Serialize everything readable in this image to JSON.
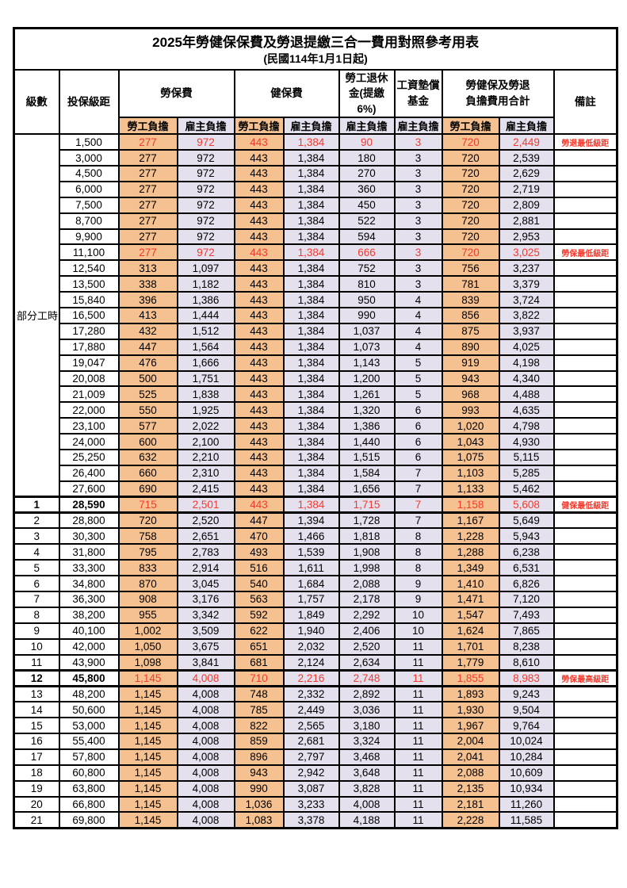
{
  "title": {
    "line1": "2025年勞健保保費及勞退提繳三合一費用對照參考用表",
    "line2": "(民國114年1月1日起)"
  },
  "header": {
    "level": "級數",
    "bracket": "投保級距",
    "labor_fee": "勞保費",
    "health_fee": "健保費",
    "pension": "勞工退休\n金(提繳6%)",
    "wage_fund": "工資墊償\n基金",
    "total": "勞健保及勞退\n負擔費用合計",
    "remark": "備註",
    "employee_burden": "勞工負擔",
    "employer_burden": "雇主負擔"
  },
  "group": {
    "label": "部分工時",
    "span": 23
  },
  "colors": {
    "employee_bg": "#f6c190",
    "employer_bg": "#e4e0ee",
    "highlight_text": "#f43a2d"
  },
  "chart_data": {
    "type": "table",
    "columns": [
      "級數",
      "投保級距",
      "勞保費-勞工負擔",
      "勞保費-雇主負擔",
      "健保費-勞工負擔",
      "健保費-雇主負擔",
      "勞工退休金(提繳6%)-雇主負擔",
      "工資墊償基金-雇主負擔",
      "合計-勞工負擔",
      "合計-雇主負擔",
      "備註"
    ]
  },
  "rows": [
    {
      "level": "",
      "bracket": "1,500",
      "values": [
        "277",
        "972",
        "443",
        "1,384",
        "90",
        "3",
        "720",
        "2,449"
      ],
      "remark": "勞退最低級距",
      "highlight": true,
      "emphasis": false
    },
    {
      "level": "",
      "bracket": "3,000",
      "values": [
        "277",
        "972",
        "443",
        "1,384",
        "180",
        "3",
        "720",
        "2,539"
      ],
      "remark": "",
      "highlight": false,
      "emphasis": false
    },
    {
      "level": "",
      "bracket": "4,500",
      "values": [
        "277",
        "972",
        "443",
        "1,384",
        "270",
        "3",
        "720",
        "2,629"
      ],
      "remark": "",
      "highlight": false,
      "emphasis": false
    },
    {
      "level": "",
      "bracket": "6,000",
      "values": [
        "277",
        "972",
        "443",
        "1,384",
        "360",
        "3",
        "720",
        "2,719"
      ],
      "remark": "",
      "highlight": false,
      "emphasis": false
    },
    {
      "level": "",
      "bracket": "7,500",
      "values": [
        "277",
        "972",
        "443",
        "1,384",
        "450",
        "3",
        "720",
        "2,809"
      ],
      "remark": "",
      "highlight": false,
      "emphasis": false
    },
    {
      "level": "",
      "bracket": "8,700",
      "values": [
        "277",
        "972",
        "443",
        "1,384",
        "522",
        "3",
        "720",
        "2,881"
      ],
      "remark": "",
      "highlight": false,
      "emphasis": false
    },
    {
      "level": "",
      "bracket": "9,900",
      "values": [
        "277",
        "972",
        "443",
        "1,384",
        "594",
        "3",
        "720",
        "2,953"
      ],
      "remark": "",
      "highlight": false,
      "emphasis": false
    },
    {
      "level": "",
      "bracket": "11,100",
      "values": [
        "277",
        "972",
        "443",
        "1,384",
        "666",
        "3",
        "720",
        "3,025"
      ],
      "remark": "勞保最低級距",
      "highlight": true,
      "emphasis": false
    },
    {
      "level": "",
      "bracket": "12,540",
      "values": [
        "313",
        "1,097",
        "443",
        "1,384",
        "752",
        "3",
        "756",
        "3,237"
      ],
      "remark": "",
      "highlight": false,
      "emphasis": false
    },
    {
      "level": "",
      "bracket": "13,500",
      "values": [
        "338",
        "1,182",
        "443",
        "1,384",
        "810",
        "3",
        "781",
        "3,379"
      ],
      "remark": "",
      "highlight": false,
      "emphasis": false
    },
    {
      "level": "",
      "bracket": "15,840",
      "values": [
        "396",
        "1,386",
        "443",
        "1,384",
        "950",
        "4",
        "839",
        "3,724"
      ],
      "remark": "",
      "highlight": false,
      "emphasis": false
    },
    {
      "level": "",
      "bracket": "16,500",
      "values": [
        "413",
        "1,444",
        "443",
        "1,384",
        "990",
        "4",
        "856",
        "3,822"
      ],
      "remark": "",
      "highlight": false,
      "emphasis": false
    },
    {
      "level": "",
      "bracket": "17,280",
      "values": [
        "432",
        "1,512",
        "443",
        "1,384",
        "1,037",
        "4",
        "875",
        "3,937"
      ],
      "remark": "",
      "highlight": false,
      "emphasis": false
    },
    {
      "level": "",
      "bracket": "17,880",
      "values": [
        "447",
        "1,564",
        "443",
        "1,384",
        "1,073",
        "4",
        "890",
        "4,025"
      ],
      "remark": "",
      "highlight": false,
      "emphasis": false
    },
    {
      "level": "",
      "bracket": "19,047",
      "values": [
        "476",
        "1,666",
        "443",
        "1,384",
        "1,143",
        "5",
        "919",
        "4,198"
      ],
      "remark": "",
      "highlight": false,
      "emphasis": false
    },
    {
      "level": "",
      "bracket": "20,008",
      "values": [
        "500",
        "1,751",
        "443",
        "1,384",
        "1,200",
        "5",
        "943",
        "4,340"
      ],
      "remark": "",
      "highlight": false,
      "emphasis": false
    },
    {
      "level": "",
      "bracket": "21,009",
      "values": [
        "525",
        "1,838",
        "443",
        "1,384",
        "1,261",
        "5",
        "968",
        "4,488"
      ],
      "remark": "",
      "highlight": false,
      "emphasis": false
    },
    {
      "level": "",
      "bracket": "22,000",
      "values": [
        "550",
        "1,925",
        "443",
        "1,384",
        "1,320",
        "6",
        "993",
        "4,635"
      ],
      "remark": "",
      "highlight": false,
      "emphasis": false
    },
    {
      "level": "",
      "bracket": "23,100",
      "values": [
        "577",
        "2,022",
        "443",
        "1,384",
        "1,386",
        "6",
        "1,020",
        "4,798"
      ],
      "remark": "",
      "highlight": false,
      "emphasis": false
    },
    {
      "level": "",
      "bracket": "24,000",
      "values": [
        "600",
        "2,100",
        "443",
        "1,384",
        "1,440",
        "6",
        "1,043",
        "4,930"
      ],
      "remark": "",
      "highlight": false,
      "emphasis": false
    },
    {
      "level": "",
      "bracket": "25,250",
      "values": [
        "632",
        "2,210",
        "443",
        "1,384",
        "1,515",
        "6",
        "1,075",
        "5,115"
      ],
      "remark": "",
      "highlight": false,
      "emphasis": false
    },
    {
      "level": "",
      "bracket": "26,400",
      "values": [
        "660",
        "2,310",
        "443",
        "1,384",
        "1,584",
        "7",
        "1,103",
        "5,285"
      ],
      "remark": "",
      "highlight": false,
      "emphasis": false
    },
    {
      "level": "",
      "bracket": "27,600",
      "values": [
        "690",
        "2,415",
        "443",
        "1,384",
        "1,656",
        "7",
        "1,133",
        "5,462"
      ],
      "remark": "",
      "highlight": false,
      "emphasis": false
    },
    {
      "level": "1",
      "bracket": "28,590",
      "values": [
        "715",
        "2,501",
        "443",
        "1,384",
        "1,715",
        "7",
        "1,158",
        "5,608"
      ],
      "remark": "健保最低級距",
      "highlight": true,
      "emphasis": true
    },
    {
      "level": "2",
      "bracket": "28,800",
      "values": [
        "720",
        "2,520",
        "447",
        "1,394",
        "1,728",
        "7",
        "1,167",
        "5,649"
      ],
      "remark": "",
      "highlight": false,
      "emphasis": false
    },
    {
      "level": "3",
      "bracket": "30,300",
      "values": [
        "758",
        "2,651",
        "470",
        "1,466",
        "1,818",
        "8",
        "1,228",
        "5,943"
      ],
      "remark": "",
      "highlight": false,
      "emphasis": false
    },
    {
      "level": "4",
      "bracket": "31,800",
      "values": [
        "795",
        "2,783",
        "493",
        "1,539",
        "1,908",
        "8",
        "1,288",
        "6,238"
      ],
      "remark": "",
      "highlight": false,
      "emphasis": false
    },
    {
      "level": "5",
      "bracket": "33,300",
      "values": [
        "833",
        "2,914",
        "516",
        "1,611",
        "1,998",
        "8",
        "1,349",
        "6,531"
      ],
      "remark": "",
      "highlight": false,
      "emphasis": false
    },
    {
      "level": "6",
      "bracket": "34,800",
      "values": [
        "870",
        "3,045",
        "540",
        "1,684",
        "2,088",
        "9",
        "1,410",
        "6,826"
      ],
      "remark": "",
      "highlight": false,
      "emphasis": false
    },
    {
      "level": "7",
      "bracket": "36,300",
      "values": [
        "908",
        "3,176",
        "563",
        "1,757",
        "2,178",
        "9",
        "1,471",
        "7,120"
      ],
      "remark": "",
      "highlight": false,
      "emphasis": false
    },
    {
      "level": "8",
      "bracket": "38,200",
      "values": [
        "955",
        "3,342",
        "592",
        "1,849",
        "2,292",
        "10",
        "1,547",
        "7,493"
      ],
      "remark": "",
      "highlight": false,
      "emphasis": false
    },
    {
      "level": "9",
      "bracket": "40,100",
      "values": [
        "1,002",
        "3,509",
        "622",
        "1,940",
        "2,406",
        "10",
        "1,624",
        "7,865"
      ],
      "remark": "",
      "highlight": false,
      "emphasis": false
    },
    {
      "level": "10",
      "bracket": "42,000",
      "values": [
        "1,050",
        "3,675",
        "651",
        "2,032",
        "2,520",
        "11",
        "1,701",
        "8,238"
      ],
      "remark": "",
      "highlight": false,
      "emphasis": false
    },
    {
      "level": "11",
      "bracket": "43,900",
      "values": [
        "1,098",
        "3,841",
        "681",
        "2,124",
        "2,634",
        "11",
        "1,779",
        "8,610"
      ],
      "remark": "",
      "highlight": false,
      "emphasis": false
    },
    {
      "level": "12",
      "bracket": "45,800",
      "values": [
        "1,145",
        "4,008",
        "710",
        "2,216",
        "2,748",
        "11",
        "1,855",
        "8,983"
      ],
      "remark": "勞保最高級距",
      "highlight": true,
      "emphasis": true
    },
    {
      "level": "13",
      "bracket": "48,200",
      "values": [
        "1,145",
        "4,008",
        "748",
        "2,332",
        "2,892",
        "11",
        "1,893",
        "9,243"
      ],
      "remark": "",
      "highlight": false,
      "emphasis": false
    },
    {
      "level": "14",
      "bracket": "50,600",
      "values": [
        "1,145",
        "4,008",
        "785",
        "2,449",
        "3,036",
        "11",
        "1,930",
        "9,504"
      ],
      "remark": "",
      "highlight": false,
      "emphasis": false
    },
    {
      "level": "15",
      "bracket": "53,000",
      "values": [
        "1,145",
        "4,008",
        "822",
        "2,565",
        "3,180",
        "11",
        "1,967",
        "9,764"
      ],
      "remark": "",
      "highlight": false,
      "emphasis": false
    },
    {
      "level": "16",
      "bracket": "55,400",
      "values": [
        "1,145",
        "4,008",
        "859",
        "2,681",
        "3,324",
        "11",
        "2,004",
        "10,024"
      ],
      "remark": "",
      "highlight": false,
      "emphasis": false
    },
    {
      "level": "17",
      "bracket": "57,800",
      "values": [
        "1,145",
        "4,008",
        "896",
        "2,797",
        "3,468",
        "11",
        "2,041",
        "10,284"
      ],
      "remark": "",
      "highlight": false,
      "emphasis": false
    },
    {
      "level": "18",
      "bracket": "60,800",
      "values": [
        "1,145",
        "4,008",
        "943",
        "2,942",
        "3,648",
        "11",
        "2,088",
        "10,609"
      ],
      "remark": "",
      "highlight": false,
      "emphasis": false
    },
    {
      "level": "19",
      "bracket": "63,800",
      "values": [
        "1,145",
        "4,008",
        "990",
        "3,087",
        "3,828",
        "11",
        "2,135",
        "10,934"
      ],
      "remark": "",
      "highlight": false,
      "emphasis": false
    },
    {
      "level": "20",
      "bracket": "66,800",
      "values": [
        "1,145",
        "4,008",
        "1,036",
        "3,233",
        "4,008",
        "11",
        "2,181",
        "11,260"
      ],
      "remark": "",
      "highlight": false,
      "emphasis": false
    },
    {
      "level": "21",
      "bracket": "69,800",
      "values": [
        "1,145",
        "4,008",
        "1,083",
        "3,378",
        "4,188",
        "11",
        "2,228",
        "11,585"
      ],
      "remark": "",
      "highlight": false,
      "emphasis": false
    }
  ]
}
